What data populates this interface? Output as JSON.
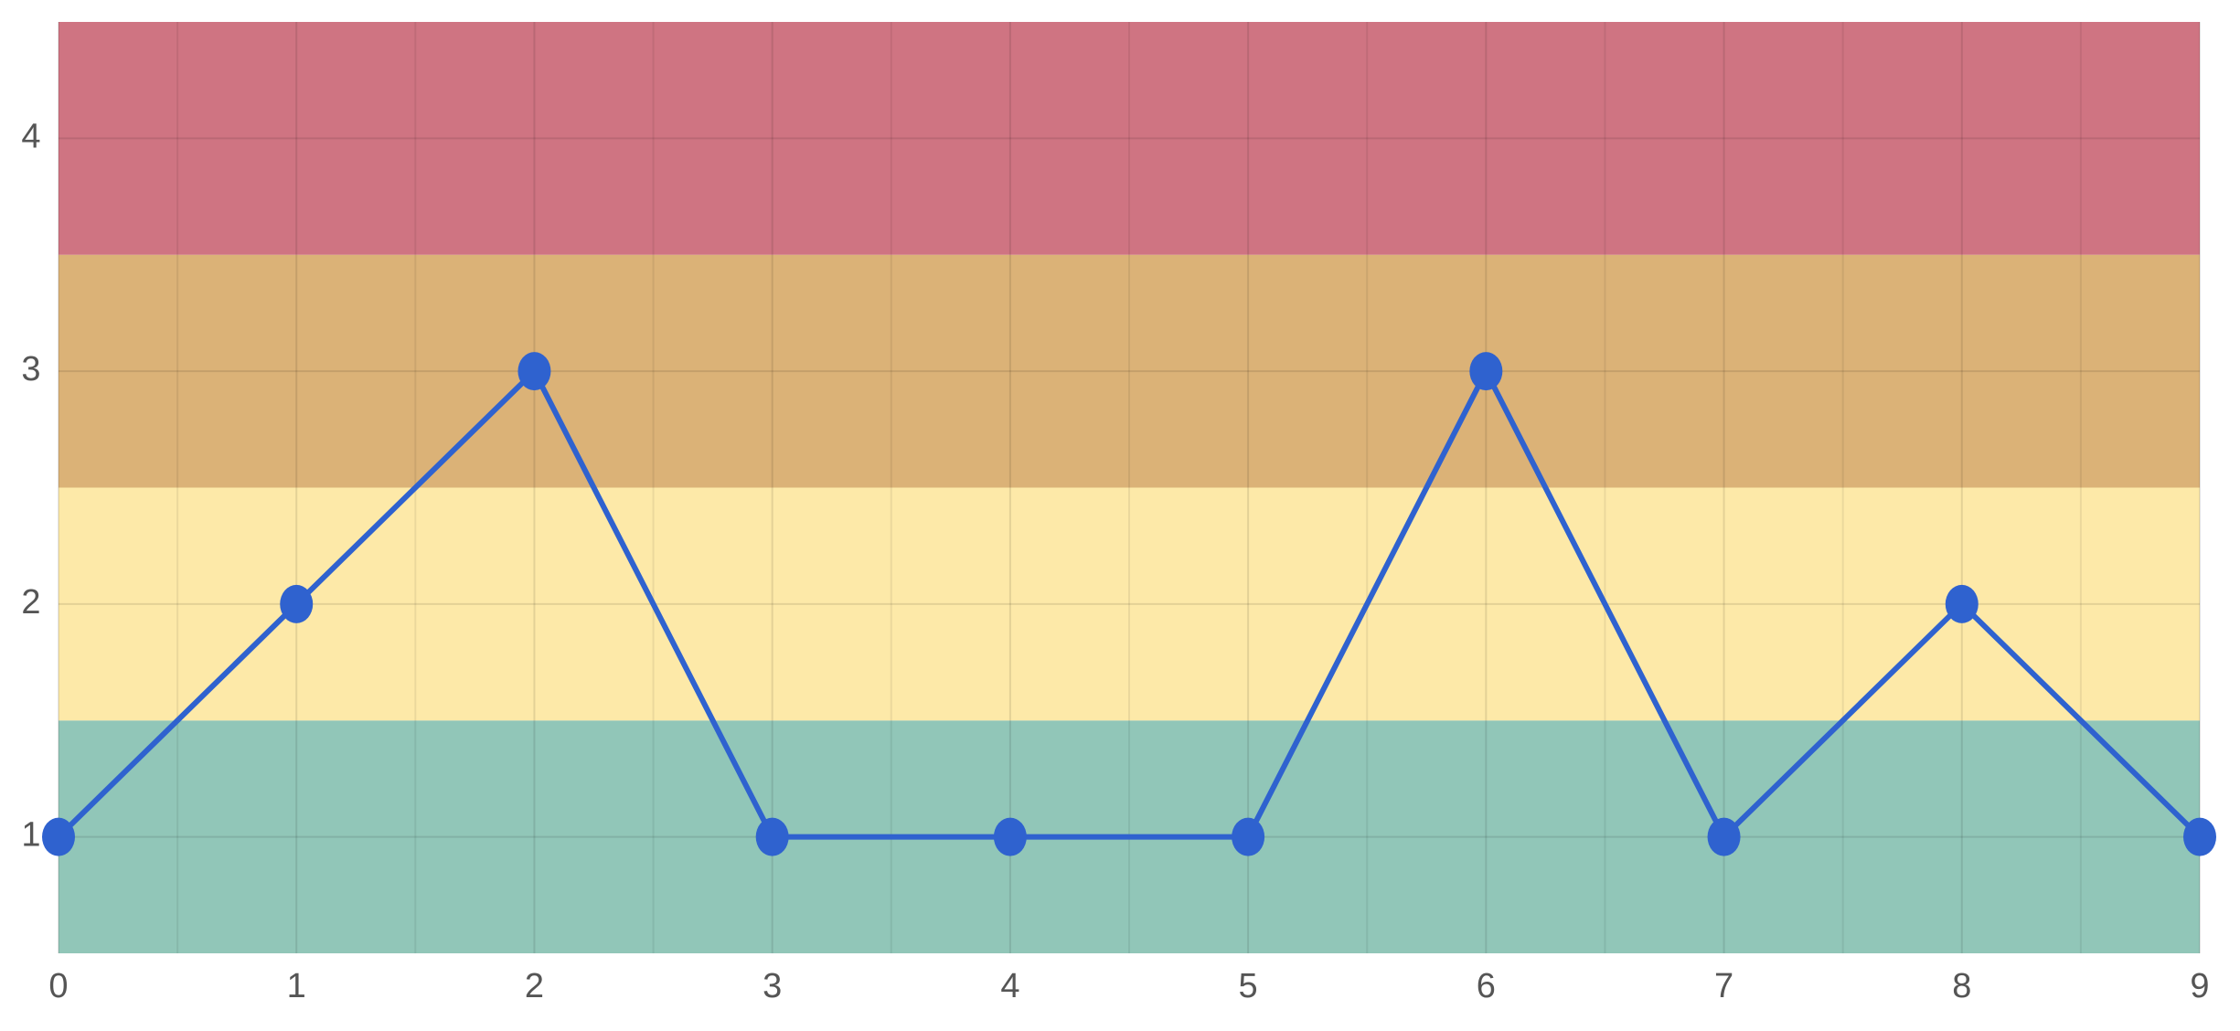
{
  "chart_data": {
    "type": "line",
    "x": [
      0,
      1,
      2,
      3,
      4,
      5,
      6,
      7,
      8,
      9
    ],
    "series": [
      {
        "color": "#2f62cf",
        "values": [
          1,
          2,
          3,
          1,
          1,
          1,
          3,
          1,
          2,
          1
        ]
      }
    ],
    "xlim": [
      0,
      9
    ],
    "xticks": [
      0,
      1,
      2,
      3,
      4,
      5,
      6,
      7,
      8,
      9
    ],
    "x_minor_ticks": [
      0.5,
      1.5,
      2.5,
      3.5,
      4.5,
      5.5,
      6.5,
      7.5,
      8.5
    ],
    "ylim": [
      0.5,
      4.5
    ],
    "yticks": [
      1,
      2,
      3,
      4
    ],
    "bands": [
      {
        "from": 0.5,
        "to": 1.5,
        "color": "#91c6b8"
      },
      {
        "from": 1.5,
        "to": 2.5,
        "color": "#fde9a8"
      },
      {
        "from": 2.5,
        "to": 3.5,
        "color": "#dbb277"
      },
      {
        "from": 3.5,
        "to": 4.5,
        "color": "#cf7482"
      }
    ],
    "grid": true
  }
}
